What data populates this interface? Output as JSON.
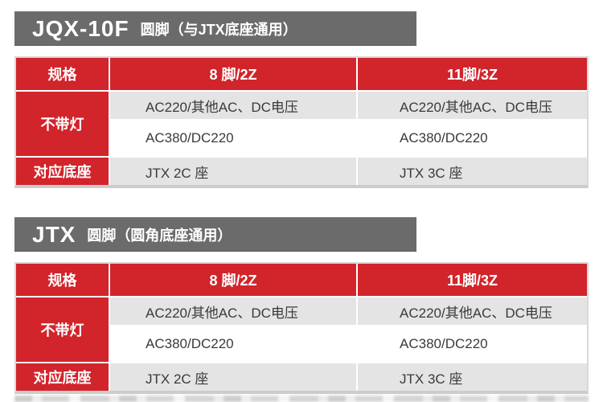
{
  "colors": {
    "accent_red": "#d2242b",
    "section_bar_gray": "#6b6b6b",
    "row_gray": "#e4e4e4",
    "table_border": "#d9d9d9",
    "body_text": "#3a3a3a"
  },
  "sections": [
    {
      "model": "JQX-10F",
      "note": "圆脚（与JTX底座通用）",
      "table": {
        "headers": [
          "规格",
          "8 脚/2Z",
          "11脚/3Z"
        ],
        "group_label": "不带灯",
        "voltage_rows": [
          {
            "pin8": "AC220/其他AC、DC电压",
            "pin11": "AC220/其他AC、DC电压"
          },
          {
            "pin8": "AC380/DC220",
            "pin11": "AC380/DC220"
          }
        ],
        "base_label": "对应底座",
        "base_row": {
          "pin8": "JTX 2C 座",
          "pin11": "JTX 3C 座"
        }
      }
    },
    {
      "model": "JTX",
      "note": "圆脚（圆角底座通用）",
      "table": {
        "headers": [
          "规格",
          "8 脚/2Z",
          "11脚/3Z"
        ],
        "group_label": "不带灯",
        "voltage_rows": [
          {
            "pin8": "AC220/其他AC、DC电压",
            "pin11": "AC220/其他AC、DC电压"
          },
          {
            "pin8": "AC380/DC220",
            "pin11": "AC380/DC220"
          }
        ],
        "base_label": "对应底座",
        "base_row": {
          "pin8": "JTX 2C 座",
          "pin11": "JTX 3C 座"
        }
      }
    }
  ]
}
